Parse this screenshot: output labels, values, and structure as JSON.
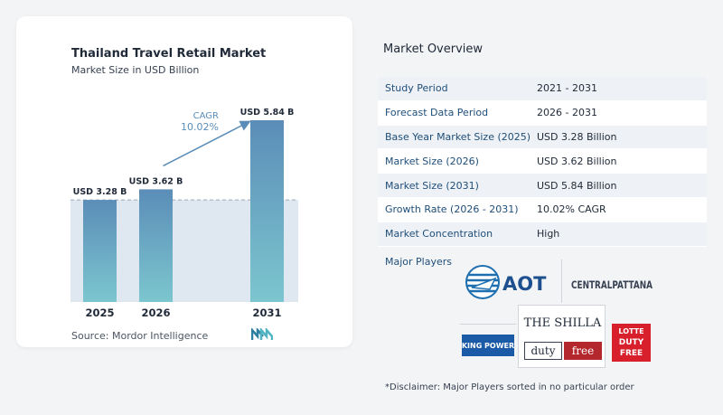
{
  "chart": {
    "title": "Thailand Travel Retail Market",
    "subtitle": "Market Size in USD Billion",
    "source": "Source:  Mordor Intelligence",
    "cagr_label": "CAGR",
    "cagr_value": "10.02%"
  },
  "chart_data": {
    "type": "bar",
    "categories": [
      "2025",
      "2026",
      "2031"
    ],
    "values": [
      3.28,
      3.62,
      5.84
    ],
    "data_labels": [
      "USD 3.28 B",
      "USD 3.62 B",
      "USD 5.84 B"
    ],
    "ylim": [
      0,
      5.84
    ],
    "annotation": "CAGR 10.02%",
    "colors": {
      "bar_top": "#5b8db8",
      "bar_bottom": "#7cc6cf",
      "baseline_fill": "#dfe8f0",
      "arrow": "#5b8db8"
    }
  },
  "overview": {
    "title": "Market Overview",
    "rows": [
      {
        "label": "Study Period",
        "value": "2021 - 2031"
      },
      {
        "label": "Forecast Data Period",
        "value": "2026 - 2031"
      },
      {
        "label": "Base Year Market Size (2025)",
        "value": "USD 3.28 Billion"
      },
      {
        "label": "Market Size (2026)",
        "value": "USD 3.62 Billion"
      },
      {
        "label": "Market Size (2031)",
        "value": "USD 5.84 Billion"
      },
      {
        "label": "Growth Rate (2026 - 2031)",
        "value": "10.02% CAGR"
      },
      {
        "label": "Market Concentration",
        "value": "High"
      }
    ],
    "players_label": "Major Players",
    "players": [
      "AOT",
      "CENTRALPATTANA",
      "KING POWER",
      "THE SHILLA duty free",
      "LOTTE DUTY FREE"
    ],
    "disclaimer": "*Disclaimer: Major Players sorted in no particular order"
  },
  "logos": {
    "aot": "AOT",
    "central": "CENTRALPATTANA",
    "kingpower": "KING POWER",
    "shilla_top": "THE SHILLA",
    "shilla_bottom_a": "duty",
    "shilla_bottom_b": "free",
    "lotte_a": "LOTTE",
    "lotte_b": "DUTY",
    "lotte_c": "FREE"
  }
}
